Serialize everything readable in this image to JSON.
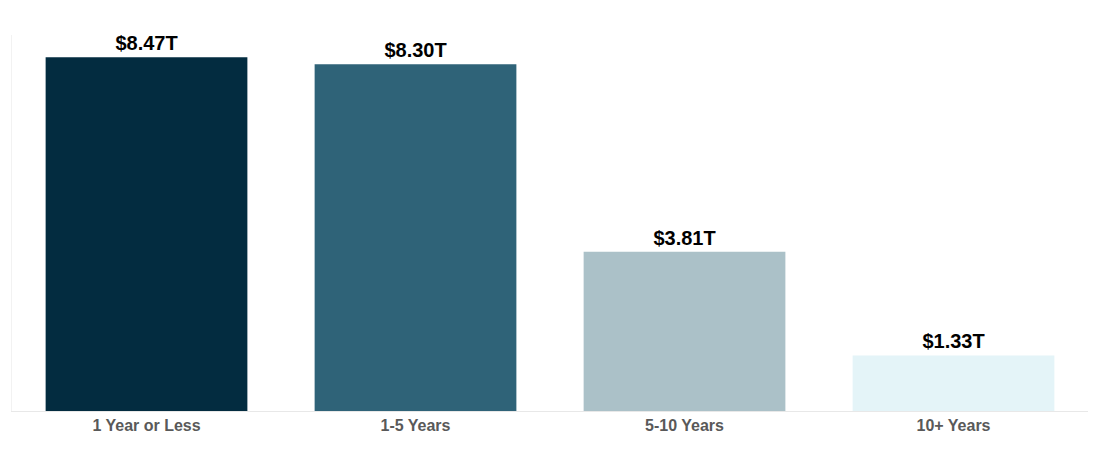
{
  "chart_data": {
    "type": "bar",
    "categories": [
      "1 Year or Less",
      "1-5 Years",
      "5-10 Years",
      "10+ Years"
    ],
    "values": [
      8.47,
      8.3,
      3.81,
      1.33
    ],
    "value_labels": [
      "$8.47T",
      "$8.30T",
      "$3.81T",
      "$1.33T"
    ],
    "colors": [
      "#032c40",
      "#2f6378",
      "#abc1c8",
      "#e4f4f8"
    ],
    "ylim": [
      0,
      9
    ],
    "yticks": [],
    "grid": false,
    "data_labels": true,
    "tick_labels": "x"
  }
}
